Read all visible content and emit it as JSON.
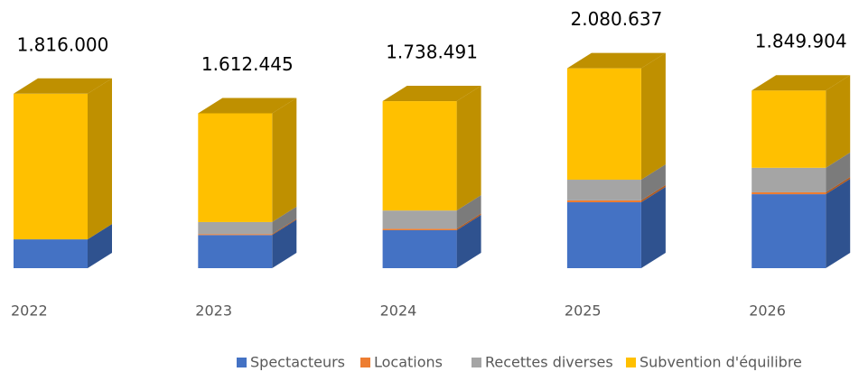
{
  "chart_data": {
    "type": "bar3d_stacked",
    "categories": [
      "2022",
      "2023",
      "2024",
      "2025",
      "2026"
    ],
    "series": [
      {
        "name": "Spectacteurs",
        "color": "#4472c4",
        "side": "#2f528f",
        "values": [
          300000,
          345000,
          395000,
          686000,
          770000
        ]
      },
      {
        "name": "Locations",
        "color": "#ed7d31",
        "side": "#ae5a21",
        "values": [
          0,
          10000,
          15000,
          20000,
          20000
        ]
      },
      {
        "name": "Recettes diverses",
        "color": "#a5a5a5",
        "side": "#7b7b7b",
        "values": [
          0,
          125000,
          190000,
          215000,
          255000
        ]
      },
      {
        "name": "Subvention d'équilibre",
        "color": "#ffc000",
        "side": "#bf9000",
        "values": [
          1516000,
          1132445,
          1138491,
          1159637,
          804904
        ]
      }
    ],
    "totals": [
      1816000,
      1612445,
      1738491,
      2080637,
      1849904
    ],
    "total_labels": [
      "1.816.000",
      "1.612.445",
      "1.738.491",
      "2.080.637",
      "1.849.904"
    ],
    "legend": "bottom"
  }
}
